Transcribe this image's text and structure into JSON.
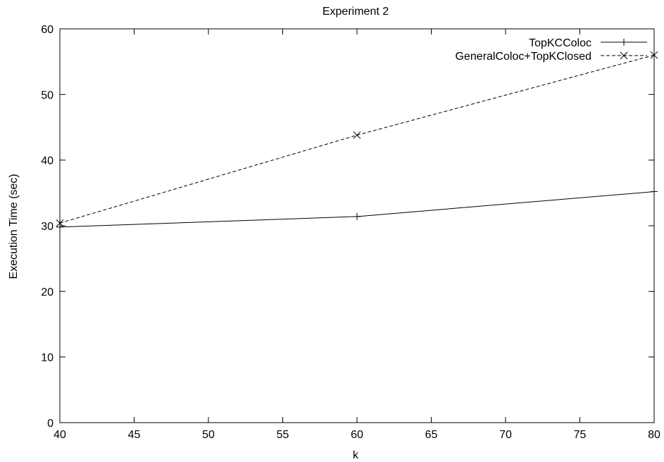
{
  "chart_data": {
    "type": "line",
    "title": "Experiment 2",
    "xlabel": "k",
    "ylabel": "Execution Time (sec)",
    "xlim": [
      40,
      80
    ],
    "ylim": [
      0,
      60
    ],
    "xticks": [
      40,
      45,
      50,
      55,
      60,
      65,
      70,
      75,
      80
    ],
    "yticks": [
      0,
      10,
      20,
      30,
      40,
      50,
      60
    ],
    "grid": false,
    "legend_position": "top-right",
    "series": [
      {
        "name": "TopKCColoc",
        "marker": "plus",
        "line_style": "solid",
        "color": "#000000",
        "x": [
          40,
          60,
          80
        ],
        "y": [
          29.8,
          31.4,
          35.2
        ]
      },
      {
        "name": "GeneralColoc+TopKClosed",
        "marker": "x",
        "line_style": "dashed",
        "color": "#000000",
        "x": [
          40,
          60,
          80
        ],
        "y": [
          30.4,
          43.8,
          56.0
        ]
      }
    ]
  }
}
